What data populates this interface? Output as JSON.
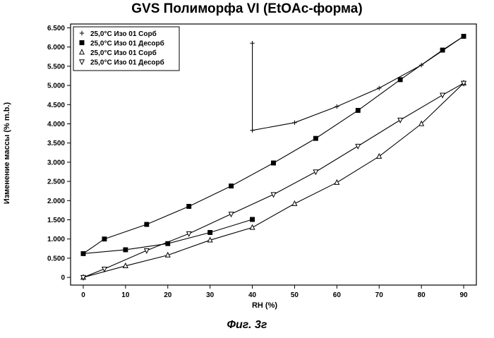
{
  "figure": {
    "title": "GVS Полиморфа VI (EtOAc-форма)",
    "caption": "Фиг. 3г"
  },
  "chart_data": {
    "type": "line",
    "title": "GVS Полиморфа VI (EtOAc-форма)",
    "xlabel": "RH (%)",
    "ylabel": "Изменение массы (% m.b.)",
    "xlim": [
      -3,
      93
    ],
    "ylim": [
      -0.2,
      6.6
    ],
    "x_ticks": [
      0,
      10,
      20,
      30,
      40,
      50,
      60,
      70,
      80,
      90
    ],
    "x_tick_labels": [
      "0",
      "10",
      "20",
      "30",
      "40",
      "50",
      "60",
      "70",
      "80",
      "90"
    ],
    "y_ticks": [
      0,
      0.5,
      1.0,
      1.5,
      2.0,
      2.5,
      3.0,
      3.5,
      4.0,
      4.5,
      5.0,
      5.5,
      6.0,
      6.5
    ],
    "y_tick_labels": [
      "0",
      "0.500",
      "1.000",
      "1.500",
      "2.000",
      "2.500",
      "3.000",
      "3.500",
      "4.000",
      "4.500",
      "5.000",
      "5.500",
      "6.000",
      "6.500"
    ],
    "legend_position": "top-left",
    "grid": false,
    "series": [
      {
        "name": "25,0°C Изо 01 Сорб",
        "marker": "plus",
        "x": [
          40,
          40,
          50,
          60,
          70,
          80,
          90
        ],
        "y": [
          6.1,
          3.83,
          4.03,
          4.45,
          4.93,
          5.53,
          6.28
        ]
      },
      {
        "name": "25,0°C Изо 01 Десорб",
        "marker": "square",
        "x": [
          90,
          85,
          75,
          65,
          55,
          45,
          35,
          25,
          15,
          5,
          0,
          10,
          20,
          30,
          40
        ],
        "y": [
          6.28,
          5.92,
          5.15,
          4.35,
          3.62,
          2.98,
          2.38,
          1.85,
          1.38,
          1.0,
          0.62,
          0.72,
          0.88,
          1.17,
          1.51
        ]
      },
      {
        "name": "25,0°C Изо 01 Сорб",
        "marker": "triangle-up",
        "x": [
          0,
          10,
          20,
          30,
          40,
          50,
          60,
          70,
          80,
          90
        ],
        "y": [
          0.0,
          0.3,
          0.58,
          0.97,
          1.3,
          1.92,
          2.47,
          3.15,
          4.0,
          5.06
        ]
      },
      {
        "name": "25,0°C Изо 01 Десорб",
        "marker": "triangle-down",
        "x": [
          90,
          85,
          75,
          65,
          55,
          45,
          35,
          25,
          15,
          5,
          0
        ],
        "y": [
          5.06,
          4.75,
          4.1,
          3.42,
          2.75,
          2.16,
          1.65,
          1.14,
          0.7,
          0.22,
          0.0
        ]
      }
    ]
  }
}
